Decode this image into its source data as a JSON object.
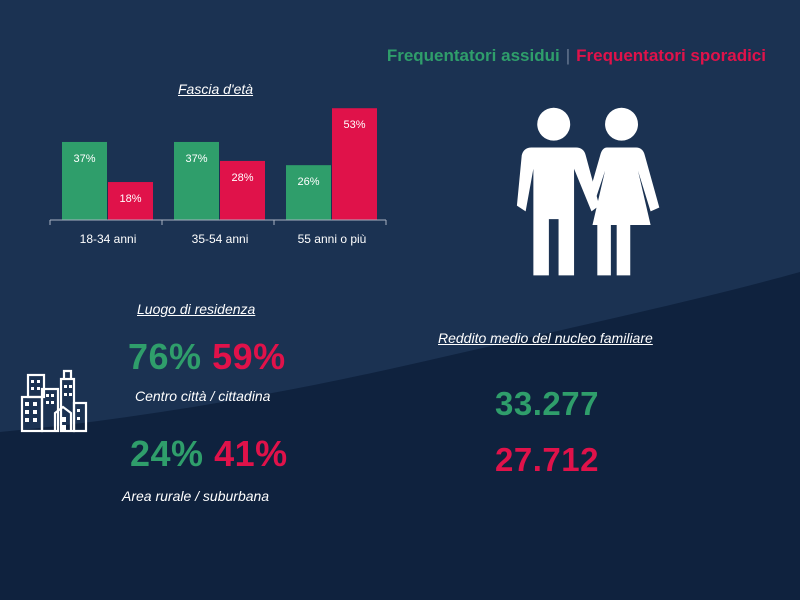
{
  "colors": {
    "assidui": "#2f9e6b",
    "sporadici": "#e0124a",
    "background": "#152845",
    "wave": "#1d3555",
    "separator": "#6a7a92"
  },
  "legend": {
    "assidui": "Frequentatori assidui",
    "separator": "|",
    "sporadici": "Frequentatori sporadici"
  },
  "age": {
    "title": "Fascia d'età"
  },
  "chart_data": {
    "type": "bar",
    "title": "Fascia d'età",
    "categories": [
      "18-34 anni",
      "35-54 anni",
      "55 anni o più"
    ],
    "series": [
      {
        "name": "Frequentatori assidui",
        "values": [
          37,
          37,
          26
        ],
        "labels": [
          "37%",
          "37%",
          "26%"
        ]
      },
      {
        "name": "Frequentatori sporadici",
        "values": [
          18,
          28,
          53
        ],
        "labels": [
          "18%",
          "28%",
          "53%"
        ]
      }
    ],
    "ylim": [
      0,
      55
    ],
    "grid": false
  },
  "residence": {
    "title": "Luogo di residenza",
    "city": {
      "assidui": "76%",
      "sporadici": "59%",
      "caption": "Centro città / cittadina"
    },
    "rural": {
      "assidui": "24%",
      "sporadici": "41%",
      "caption": "Area rurale / suburbana"
    }
  },
  "income": {
    "title": "Reddito medio del nucleo familiare",
    "assidui": "33.277",
    "sporadici": "27.712"
  },
  "icons": {
    "couple": "couple-icon",
    "city": "city-buildings-icon"
  }
}
